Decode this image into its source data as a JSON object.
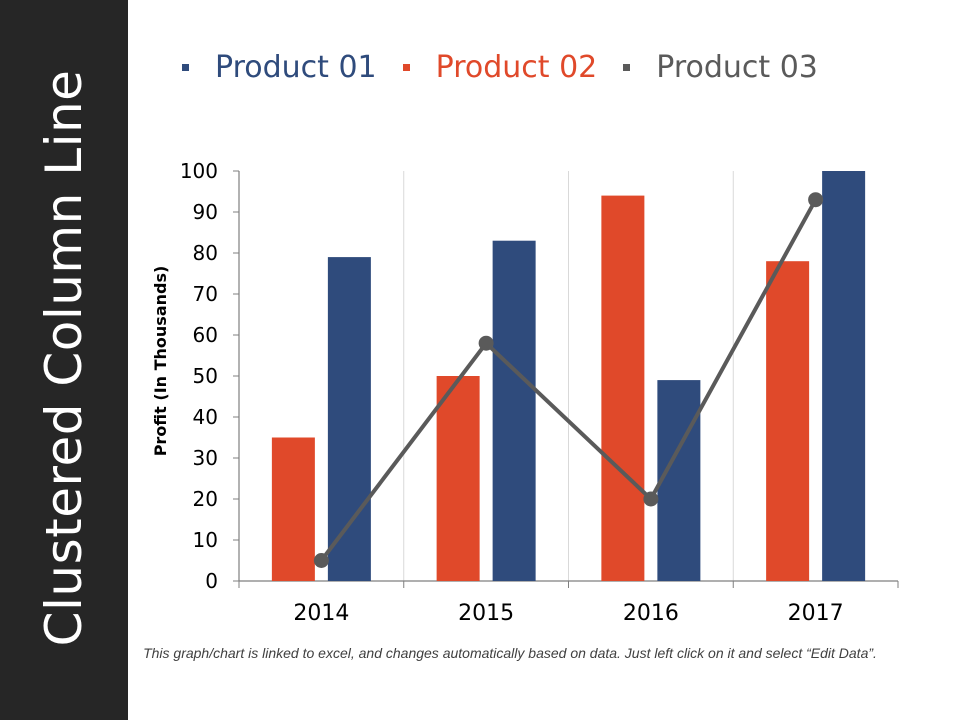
{
  "slide": {
    "title": "Clustered Column Line",
    "footnote": "This graph/chart is linked to excel, and changes automatically based on data. Just left click on it and select “Edit Data”."
  },
  "colors": {
    "product01": "#2f4b7c",
    "product02": "#e0492a",
    "product03": "#5a5a5a",
    "sidebar": "#262626"
  },
  "legend": [
    {
      "label": "Product 01",
      "color": "#2f4b7c"
    },
    {
      "label": "Product 02",
      "color": "#e0492a"
    },
    {
      "label": "Product 03",
      "color": "#5a5a5a"
    }
  ],
  "chart_data": {
    "type": "bar",
    "title": "",
    "categories": [
      "2014",
      "2015",
      "2016",
      "2017"
    ],
    "series": [
      {
        "name": "Product 02",
        "kind": "bar",
        "color": "#e0492a",
        "values": [
          35,
          50,
          94,
          78
        ]
      },
      {
        "name": "Product 01",
        "kind": "bar",
        "color": "#2f4b7c",
        "values": [
          79,
          83,
          49,
          100
        ]
      },
      {
        "name": "Product 03",
        "kind": "line",
        "color": "#5a5a5a",
        "values": [
          5,
          58,
          20,
          93
        ]
      }
    ],
    "xlabel": "",
    "ylabel": "Profit  (In Thousands)",
    "ylim": [
      0,
      100
    ],
    "yticks": [
      "0",
      "10",
      "20",
      "30",
      "40",
      "50",
      "60",
      "70",
      "80",
      "90",
      "100"
    ],
    "legend_position": "top"
  }
}
